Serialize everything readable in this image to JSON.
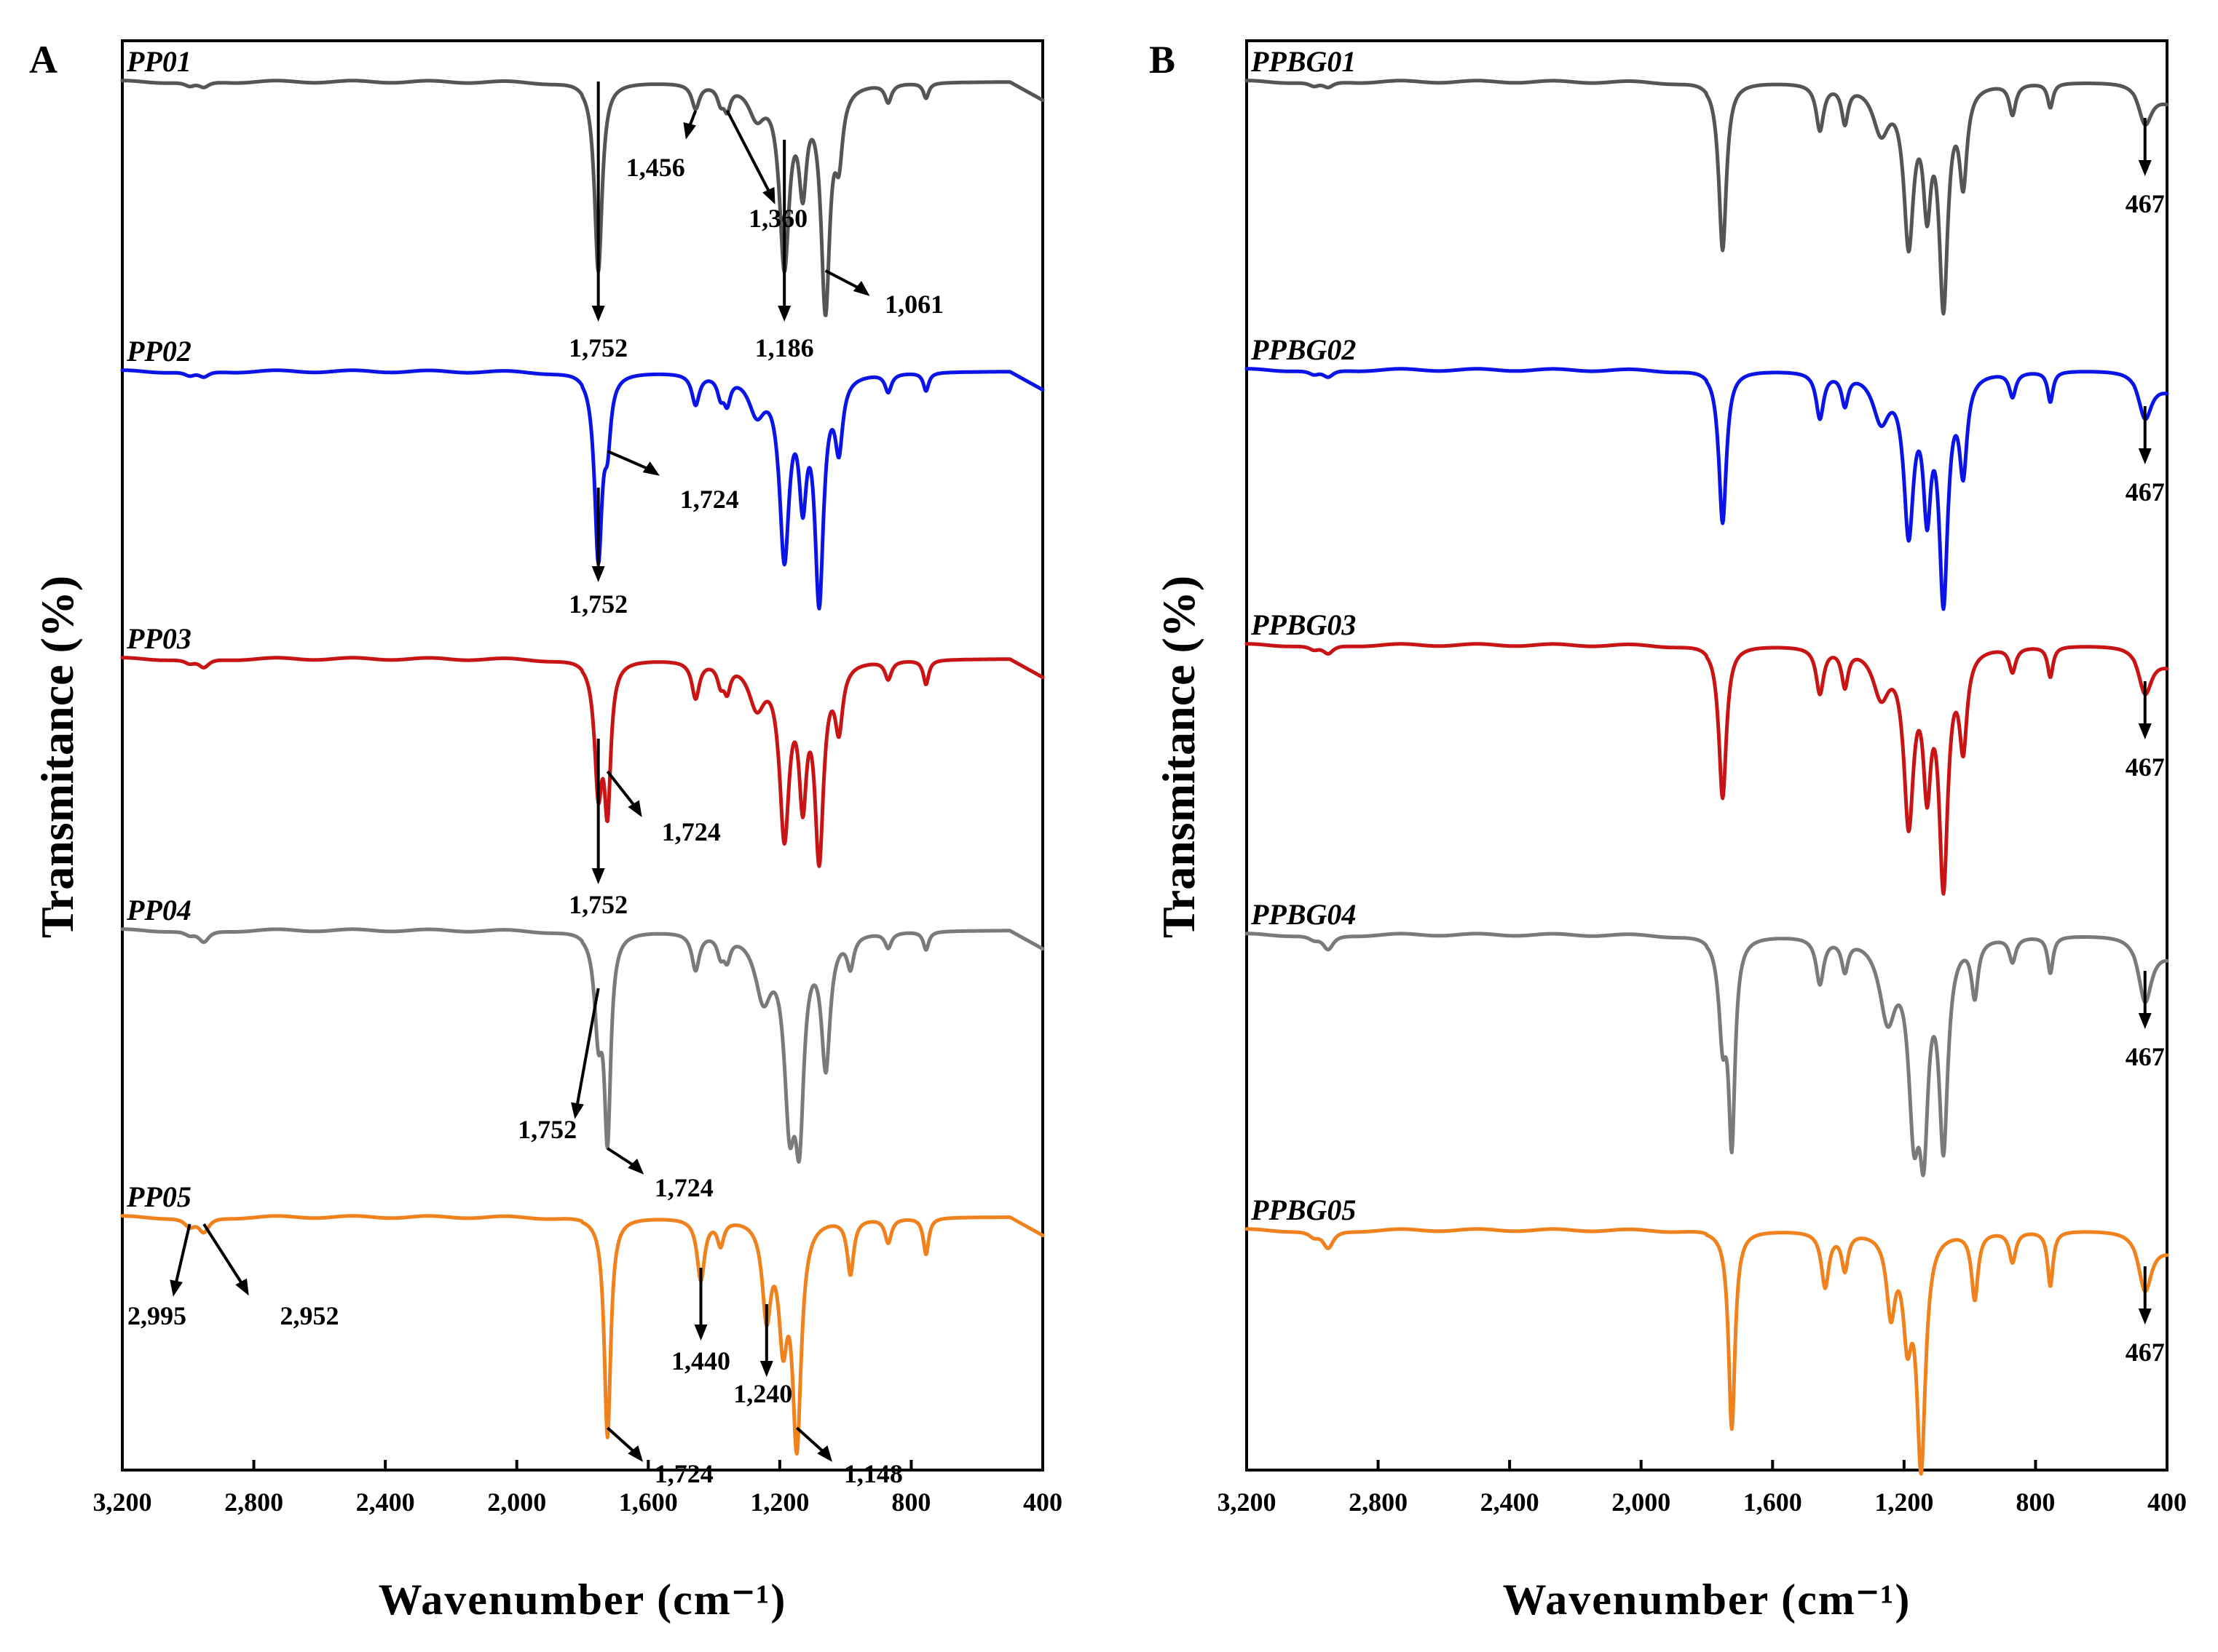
{
  "chart_data": [
    {
      "type": "line",
      "panel": "A",
      "xlabel": "Wavenumber (cm⁻¹)",
      "ylabel": "Transmitance (%)",
      "xlim": [
        3200,
        400
      ],
      "xticks": [
        3200,
        2800,
        2400,
        2000,
        1600,
        1200,
        800,
        400
      ],
      "xtick_labels": [
        "3,200",
        "2,800",
        "2,400",
        "2,000",
        "1,600",
        "1,200",
        "800",
        "400"
      ],
      "grid": false,
      "series": [
        {
          "name": "PP01",
          "color": "#555555",
          "bands": [
            [
              2995,
              0.015,
              20
            ],
            [
              2952,
              0.02,
              20
            ],
            [
              1752,
              0.62,
              14
            ],
            [
              1456,
              0.08,
              14
            ],
            [
              1380,
              0.05,
              12
            ],
            [
              1360,
              0.07,
              12
            ],
            [
              1270,
              0.1,
              30
            ],
            [
              1186,
              0.58,
              18
            ],
            [
              1130,
              0.3,
              14
            ],
            [
              1061,
              0.72,
              16
            ],
            [
              1020,
              0.2,
              14
            ],
            [
              870,
              0.06,
              12
            ],
            [
              755,
              0.05,
              10
            ]
          ],
          "annotations": [
            {
              "label": "1,456",
              "x": 1456
            },
            {
              "label": "1,360",
              "x": 1360
            },
            {
              "label": "1,752",
              "x": 1752
            },
            {
              "label": "1,186",
              "x": 1186
            },
            {
              "label": "1,061",
              "x": 1061
            }
          ]
        },
        {
          "name": "PP02",
          "color": "#0a14e6",
          "bands": [
            [
              2995,
              0.015,
              20
            ],
            [
              2952,
              0.02,
              20
            ],
            [
              1752,
              0.6,
              14
            ],
            [
              1724,
              0.18,
              12
            ],
            [
              1456,
              0.1,
              14
            ],
            [
              1380,
              0.06,
              12
            ],
            [
              1360,
              0.08,
              12
            ],
            [
              1270,
              0.12,
              30
            ],
            [
              1186,
              0.58,
              18
            ],
            [
              1130,
              0.35,
              14
            ],
            [
              1080,
              0.72,
              16
            ],
            [
              1020,
              0.22,
              14
            ],
            [
              870,
              0.06,
              12
            ],
            [
              755,
              0.06,
              10
            ]
          ],
          "annotations": [
            {
              "label": "1,724",
              "x": 1724
            },
            {
              "label": "1,752",
              "x": 1752
            }
          ]
        },
        {
          "name": "PP03",
          "color": "#c81414",
          "bands": [
            [
              2995,
              0.015,
              20
            ],
            [
              2952,
              0.03,
              20
            ],
            [
              1752,
              0.4,
              14
            ],
            [
              1724,
              0.45,
              12
            ],
            [
              1456,
              0.12,
              14
            ],
            [
              1380,
              0.06,
              12
            ],
            [
              1360,
              0.08,
              12
            ],
            [
              1270,
              0.14,
              30
            ],
            [
              1186,
              0.55,
              18
            ],
            [
              1130,
              0.4,
              14
            ],
            [
              1080,
              0.62,
              16
            ],
            [
              1020,
              0.2,
              14
            ],
            [
              870,
              0.06,
              12
            ],
            [
              755,
              0.08,
              10
            ]
          ],
          "annotations": [
            {
              "label": "1,724",
              "x": 1724
            },
            {
              "label": "1,752",
              "x": 1752
            }
          ]
        },
        {
          "name": "PP04",
          "color": "#7a7a7a",
          "bands": [
            [
              2995,
              0.015,
              20
            ],
            [
              2952,
              0.04,
              20
            ],
            [
              1752,
              0.3,
              14
            ],
            [
              1724,
              0.65,
              12
            ],
            [
              1456,
              0.12,
              14
            ],
            [
              1380,
              0.06,
              12
            ],
            [
              1360,
              0.07,
              12
            ],
            [
              1250,
              0.2,
              30
            ],
            [
              1170,
              0.55,
              20
            ],
            [
              1140,
              0.55,
              16
            ],
            [
              1060,
              0.42,
              16
            ],
            [
              985,
              0.1,
              12
            ],
            [
              870,
              0.05,
              12
            ],
            [
              755,
              0.06,
              10
            ]
          ],
          "annotations": [
            {
              "label": "1,752",
              "x": 1752
            },
            {
              "label": "1,724",
              "x": 1724
            }
          ]
        },
        {
          "name": "PP05",
          "color": "#f0821e",
          "bands": [
            [
              2995,
              0.03,
              20
            ],
            [
              2952,
              0.05,
              20
            ],
            [
              1724,
              0.72,
              12
            ],
            [
              1440,
              0.2,
              14
            ],
            [
              1380,
              0.08,
              12
            ],
            [
              1240,
              0.3,
              16
            ],
            [
              1190,
              0.35,
              16
            ],
            [
              1148,
              0.72,
              16
            ],
            [
              985,
              0.18,
              12
            ],
            [
              870,
              0.08,
              12
            ],
            [
              755,
              0.12,
              10
            ]
          ],
          "annotations": [
            {
              "label": "2,995",
              "x": 2995
            },
            {
              "label": "2,952",
              "x": 2952
            },
            {
              "label": "1,440",
              "x": 1440
            },
            {
              "label": "1,240",
              "x": 1240
            },
            {
              "label": "1,724",
              "x": 1724
            },
            {
              "label": "1,148",
              "x": 1148
            }
          ]
        }
      ]
    },
    {
      "type": "line",
      "panel": "B",
      "xlabel": "Wavenumber (cm⁻¹)",
      "ylabel": "Transmitance (%)",
      "xlim": [
        3200,
        400
      ],
      "xticks": [
        3200,
        2800,
        2400,
        2000,
        1600,
        1200,
        800,
        400
      ],
      "xtick_labels": [
        "3,200",
        "2,800",
        "2,400",
        "2,000",
        "1,600",
        "1,200",
        "800",
        "400"
      ],
      "grid": false,
      "series": [
        {
          "name": "PPBG01",
          "color": "#555555",
          "bands": [
            [
              2995,
              0.015,
              20
            ],
            [
              2952,
              0.02,
              20
            ],
            [
              1752,
              0.55,
              14
            ],
            [
              1456,
              0.15,
              14
            ],
            [
              1380,
              0.12,
              12
            ],
            [
              1270,
              0.15,
              30
            ],
            [
              1186,
              0.5,
              18
            ],
            [
              1130,
              0.35,
              14
            ],
            [
              1080,
              0.7,
              16
            ],
            [
              1020,
              0.3,
              14
            ],
            [
              870,
              0.1,
              12
            ],
            [
              755,
              0.08,
              10
            ],
            [
              467,
              0.12,
              25
            ]
          ],
          "annotations": [
            {
              "label": "467",
              "x": 467
            }
          ]
        },
        {
          "name": "PPBG02",
          "color": "#0a14e6",
          "bands": [
            [
              2995,
              0.015,
              20
            ],
            [
              2952,
              0.025,
              20
            ],
            [
              1752,
              0.5,
              14
            ],
            [
              1456,
              0.15,
              14
            ],
            [
              1380,
              0.1,
              12
            ],
            [
              1270,
              0.15,
              30
            ],
            [
              1186,
              0.5,
              18
            ],
            [
              1130,
              0.4,
              14
            ],
            [
              1080,
              0.72,
              16
            ],
            [
              1020,
              0.3,
              14
            ],
            [
              870,
              0.08,
              12
            ],
            [
              755,
              0.1,
              10
            ],
            [
              467,
              0.14,
              25
            ]
          ],
          "annotations": [
            {
              "label": "467",
              "x": 467
            }
          ]
        },
        {
          "name": "PPBG03",
          "color": "#c81414",
          "bands": [
            [
              2995,
              0.015,
              20
            ],
            [
              2952,
              0.03,
              20
            ],
            [
              1752,
              0.5,
              14
            ],
            [
              1456,
              0.15,
              14
            ],
            [
              1380,
              0.12,
              12
            ],
            [
              1270,
              0.15,
              30
            ],
            [
              1186,
              0.55,
              18
            ],
            [
              1130,
              0.4,
              14
            ],
            [
              1080,
              0.75,
              16
            ],
            [
              1020,
              0.3,
              14
            ],
            [
              870,
              0.08,
              12
            ],
            [
              755,
              0.1,
              10
            ],
            [
              467,
              0.14,
              25
            ]
          ],
          "annotations": [
            {
              "label": "467",
              "x": 467
            }
          ]
        },
        {
          "name": "PPBG04",
          "color": "#7a7a7a",
          "bands": [
            [
              2995,
              0.015,
              20
            ],
            [
              2952,
              0.05,
              20
            ],
            [
              1752,
              0.3,
              14
            ],
            [
              1724,
              0.65,
              12
            ],
            [
              1456,
              0.15,
              14
            ],
            [
              1380,
              0.1,
              12
            ],
            [
              1250,
              0.25,
              30
            ],
            [
              1170,
              0.55,
              20
            ],
            [
              1140,
              0.55,
              16
            ],
            [
              1080,
              0.65,
              16
            ],
            [
              985,
              0.18,
              12
            ],
            [
              870,
              0.08,
              12
            ],
            [
              755,
              0.12,
              10
            ],
            [
              467,
              0.2,
              25
            ]
          ],
          "annotations": [
            {
              "label": "467",
              "x": 467
            }
          ]
        },
        {
          "name": "PPBG05",
          "color": "#f0821e",
          "bands": [
            [
              2995,
              0.02,
              20
            ],
            [
              2952,
              0.06,
              20
            ],
            [
              1724,
              0.65,
              12
            ],
            [
              1440,
              0.18,
              14
            ],
            [
              1380,
              0.12,
              12
            ],
            [
              1240,
              0.25,
              16
            ],
            [
              1190,
              0.3,
              16
            ],
            [
              1148,
              0.75,
              16
            ],
            [
              985,
              0.22,
              12
            ],
            [
              870,
              0.1,
              12
            ],
            [
              755,
              0.18,
              10
            ],
            [
              467,
              0.18,
              25
            ]
          ],
          "annotations": [
            {
              "label": "467",
              "x": 467
            }
          ]
        }
      ]
    }
  ],
  "panels": {
    "a": {
      "letter": "A",
      "ylabel": "Transmitance (%)",
      "xlabel": "Wavenumber (cm⁻¹)"
    },
    "b": {
      "letter": "B",
      "ylabel": "Transmitance (%)",
      "xlabel": "Wavenumber (cm⁻¹)"
    }
  },
  "colors": {
    "gray_dark": "#555555",
    "blue": "#0a14e6",
    "red": "#c81414",
    "gray": "#7a7a7a",
    "orange": "#f0821e"
  }
}
